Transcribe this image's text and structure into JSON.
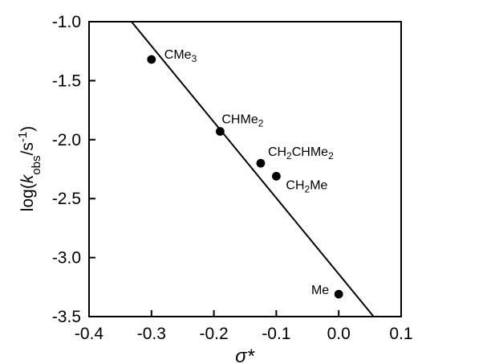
{
  "chart_data": {
    "type": "scatter",
    "title": "",
    "xlabel": "σ*",
    "ylabel": "log(kobs/s-1)",
    "xlim": [
      -0.4,
      0.1
    ],
    "ylim": [
      -3.5,
      -1.0
    ],
    "x_ticks": [
      -0.4,
      -0.3,
      -0.2,
      -0.1,
      0.0,
      0.1
    ],
    "y_ticks": [
      -1.0,
      -1.5,
      -2.0,
      -2.5,
      -3.0,
      -3.5
    ],
    "x_tick_labels": [
      "-0.4",
      "-0.3",
      "-0.2",
      "-0.1",
      "0.0",
      "0.1"
    ],
    "y_tick_labels": [
      "-1.0",
      "-1.5",
      "-2.0",
      "-2.5",
      "-3.0",
      "-3.5"
    ],
    "grid": false,
    "legend": "none",
    "points": [
      {
        "x": -0.3,
        "y": -1.32,
        "label": "CMe3",
        "label_main": "CMe",
        "label_sub": "3",
        "label_tail": ""
      },
      {
        "x": -0.19,
        "y": -1.93,
        "label": "CHMe2",
        "label_main": "CHMe",
        "label_sub": "2",
        "label_tail": ""
      },
      {
        "x": -0.125,
        "y": -2.2,
        "label": "CH2CHMe2",
        "label_main": "CH",
        "label_sub": "2",
        "label_tail": "CHMe2"
      },
      {
        "x": -0.1,
        "y": -2.31,
        "label": "CH2Me",
        "label_main": "CH",
        "label_sub": "2",
        "label_tail": "Me"
      },
      {
        "x": 0.0,
        "y": -3.31,
        "label": "Me",
        "label_main": "Me",
        "label_sub": "",
        "label_tail": ""
      }
    ],
    "fit_line": {
      "x": [
        -0.332,
        0.056
      ],
      "y": [
        -1.0,
        -3.5
      ]
    },
    "colors": {
      "points": "#000000",
      "line": "#000000",
      "axes": "#000000"
    }
  }
}
